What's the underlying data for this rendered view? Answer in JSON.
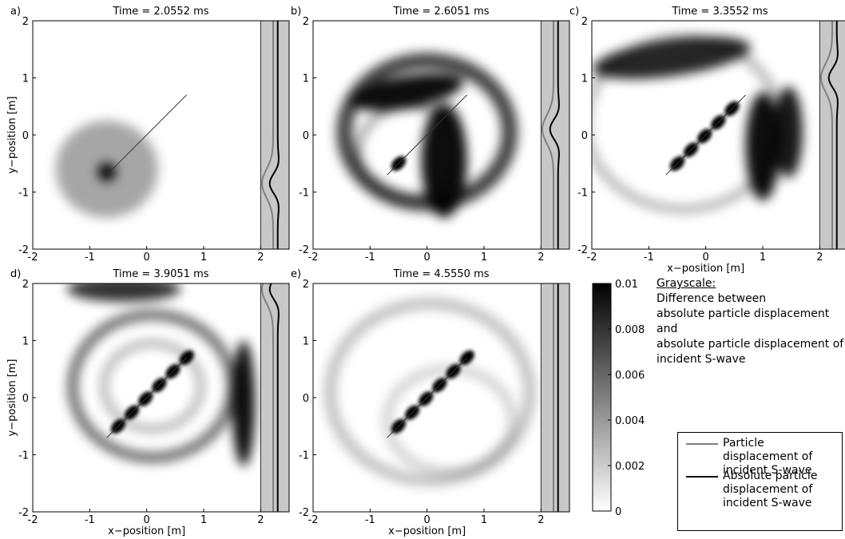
{
  "chart_data": [
    {
      "type": "heatmap",
      "label": "a)",
      "title": "Time = 2.0552 ms",
      "ylabel": "y−position [m]",
      "xlim": [
        -2,
        2.5
      ],
      "ylim": [
        -2,
        2
      ],
      "xticks": [
        -2,
        -1,
        0,
        1,
        2
      ],
      "yticks": [
        -2,
        -1,
        0,
        1,
        2
      ]
    },
    {
      "type": "heatmap",
      "label": "b)",
      "title": "Time = 2.6051 ms",
      "xlim": [
        -2,
        2.5
      ],
      "ylim": [
        -2,
        2
      ],
      "xticks": [
        -2,
        -1,
        0,
        1,
        2
      ],
      "yticks": [
        -2,
        -1,
        0,
        1,
        2
      ]
    },
    {
      "type": "heatmap",
      "label": "c)",
      "title": "Time = 3.3552 ms",
      "xlabel": "x−position [m]",
      "xlim": [
        -2,
        2.5
      ],
      "ylim": [
        -2,
        2
      ],
      "xticks": [
        -2,
        -1,
        0,
        1,
        2
      ],
      "yticks": [
        -2,
        -1,
        0,
        1,
        2
      ]
    },
    {
      "type": "heatmap",
      "label": "d)",
      "title": "Time = 3.9051 ms",
      "xlabel": "x−position [m]",
      "ylabel": "y−position [m]",
      "xlim": [
        -2,
        2.5
      ],
      "ylim": [
        -2,
        2
      ],
      "xticks": [
        -2,
        -1,
        0,
        1,
        2
      ],
      "yticks": [
        -2,
        -1,
        0,
        1,
        2
      ]
    },
    {
      "type": "heatmap",
      "label": "e)",
      "title": "Time = 4.5550 ms",
      "xlabel": "x−position [m]",
      "xlim": [
        -2,
        2.5
      ],
      "ylim": [
        -2,
        2
      ],
      "xticks": [
        -2,
        -1,
        0,
        1,
        2
      ],
      "yticks": [
        -2,
        -1,
        0,
        1,
        2
      ]
    }
  ],
  "colorbar": {
    "clim": [
      0,
      0.01
    ],
    "ticks": [
      0,
      0.002,
      0.004,
      0.006,
      0.008,
      0.01
    ],
    "colors": [
      "#ffffff",
      "#000000"
    ]
  },
  "annotation": {
    "heading": "Grayscale:",
    "lines": [
      "Difference between",
      "absolute particle displacement",
      "and",
      "absolute particle displacement of",
      "incident S-wave"
    ]
  },
  "legend": {
    "series": [
      {
        "name": "Particle displacement of incident S-wave",
        "color": "#808080"
      },
      {
        "name": "Absolute particle displacement of incident S-wave",
        "color": "#000000"
      }
    ]
  }
}
